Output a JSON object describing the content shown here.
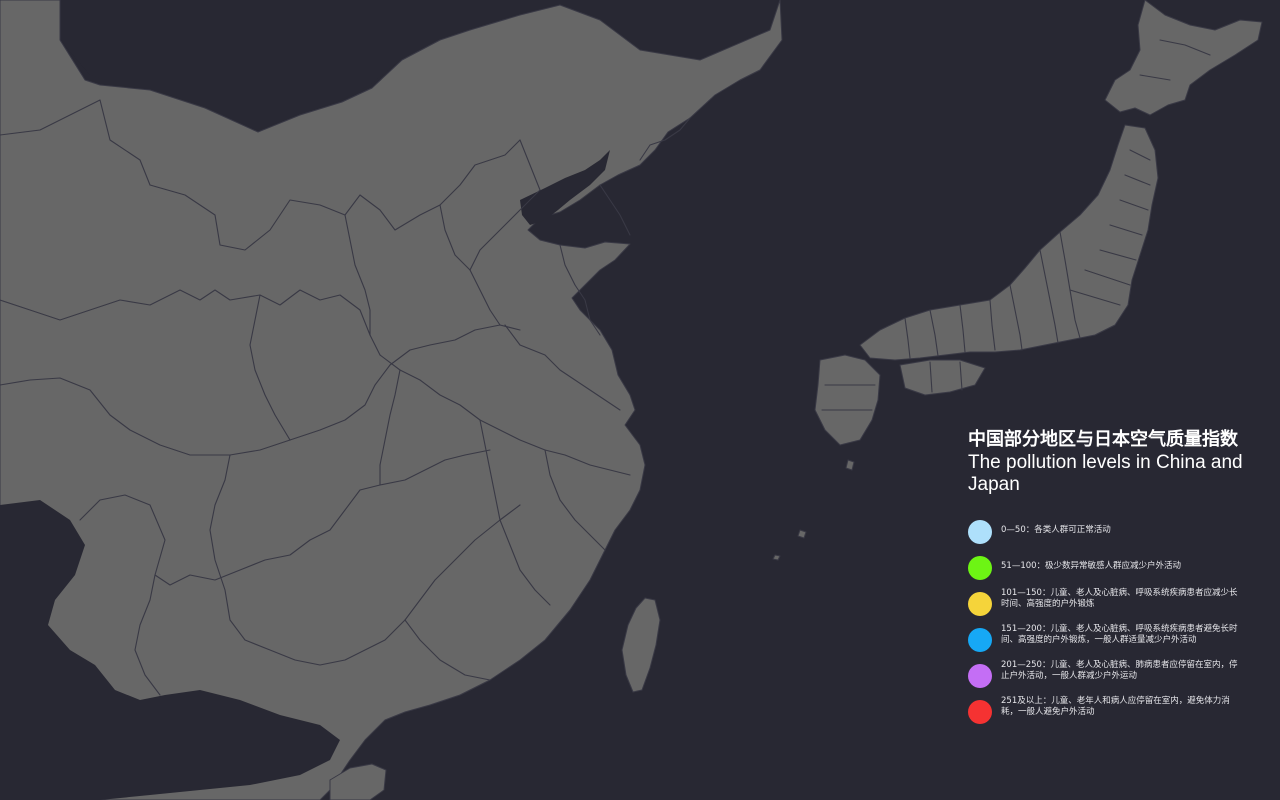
{
  "title": {
    "zh": "中国部分地区与日本空气质量指数",
    "en": "The pollution levels in China and Japan"
  },
  "colors": {
    "background": "#282833",
    "land": "#676767",
    "border": "#393945"
  },
  "legend": {
    "items": [
      {
        "color": "#aee0fb",
        "label": "0—50：各类人群可正常活动"
      },
      {
        "color": "#6df514",
        "label": "51—100：极少数异常敏感人群应减少户外活动"
      },
      {
        "color": "#f5d43a",
        "label": "101—150：儿童、老人及心脏病、呼吸系统疾病患者应减少长时间、高强度的户外锻炼"
      },
      {
        "color": "#16a8f5",
        "label": "151—200：儿童、老人及心脏病、呼吸系统疾病患者避免长时间、高强度的户外锻炼，一般人群适量减少户外活动"
      },
      {
        "color": "#c46ef5",
        "label": "201—250：儿童、老人及心脏病、肺病患者应停留在室内，停止户外活动，一般人群减少户外运动"
      },
      {
        "color": "#f53232",
        "label": "251及以上：儿童、老年人和病人应停留在室内，避免体力消耗，一般人避免户外活动"
      }
    ]
  }
}
